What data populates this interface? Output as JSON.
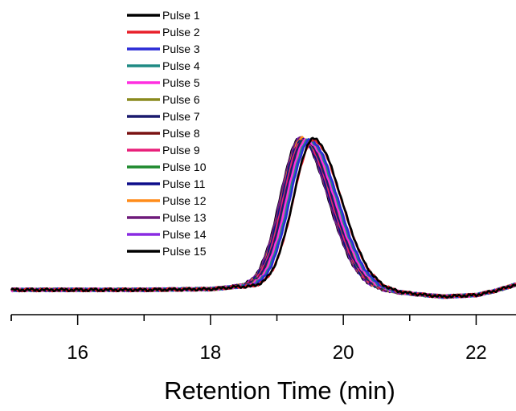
{
  "chart_data": {
    "type": "line",
    "title": "",
    "xlabel": "Retention Time (min)",
    "ylabel": "",
    "xlim": [
      15.0,
      22.6
    ],
    "ylim": [
      -0.08,
      1.05
    ],
    "xticks": [
      16,
      18,
      20,
      22
    ],
    "grid": false,
    "legend_position": "top-left",
    "series": [
      {
        "name": "Pulse 1",
        "color": "#000000",
        "peak_center": 19.55,
        "height": 1.0
      },
      {
        "name": "Pulse 2",
        "color": "#e8202a",
        "peak_center": 19.55,
        "height": 0.99
      },
      {
        "name": "Pulse 3",
        "color": "#2b2bd6",
        "peak_center": 19.5,
        "height": 0.99
      },
      {
        "name": "Pulse 4",
        "color": "#1f8a84",
        "peak_center": 19.48,
        "height": 0.99
      },
      {
        "name": "Pulse 5",
        "color": "#ff2fe0",
        "peak_center": 19.45,
        "height": 0.99
      },
      {
        "name": "Pulse 6",
        "color": "#8a8a1e",
        "peak_center": 19.45,
        "height": 0.99
      },
      {
        "name": "Pulse 7",
        "color": "#1a1a6e",
        "peak_center": 19.42,
        "height": 0.99
      },
      {
        "name": "Pulse 8",
        "color": "#7a1212",
        "peak_center": 19.42,
        "height": 0.99
      },
      {
        "name": "Pulse 9",
        "color": "#e8207a",
        "peak_center": 19.4,
        "height": 0.99
      },
      {
        "name": "Pulse 10",
        "color": "#1e8a2e",
        "peak_center": 19.4,
        "height": 0.99
      },
      {
        "name": "Pulse 11",
        "color": "#0d0d8a",
        "peak_center": 19.38,
        "height": 0.99
      },
      {
        "name": "Pulse 12",
        "color": "#ff8c1a",
        "peak_center": 19.38,
        "height": 1.0
      },
      {
        "name": "Pulse 13",
        "color": "#6e1a7a",
        "peak_center": 19.36,
        "height": 1.0
      },
      {
        "name": "Pulse 14",
        "color": "#8a2be2",
        "peak_center": 19.36,
        "height": 1.0
      },
      {
        "name": "Pulse 15",
        "color": "#000000",
        "peak_center": 19.35,
        "height": 1.0
      }
    ],
    "baseline_shape": [
      [
        15.0,
        0.005
      ],
      [
        16.0,
        0.005
      ],
      [
        17.0,
        0.005
      ],
      [
        18.0,
        0.01
      ],
      [
        18.4,
        0.025
      ],
      [
        20.5,
        0.0
      ],
      [
        21.0,
        -0.02
      ],
      [
        21.5,
        -0.04
      ],
      [
        22.0,
        -0.03
      ],
      [
        22.3,
        0.0
      ],
      [
        22.6,
        0.04
      ]
    ]
  }
}
